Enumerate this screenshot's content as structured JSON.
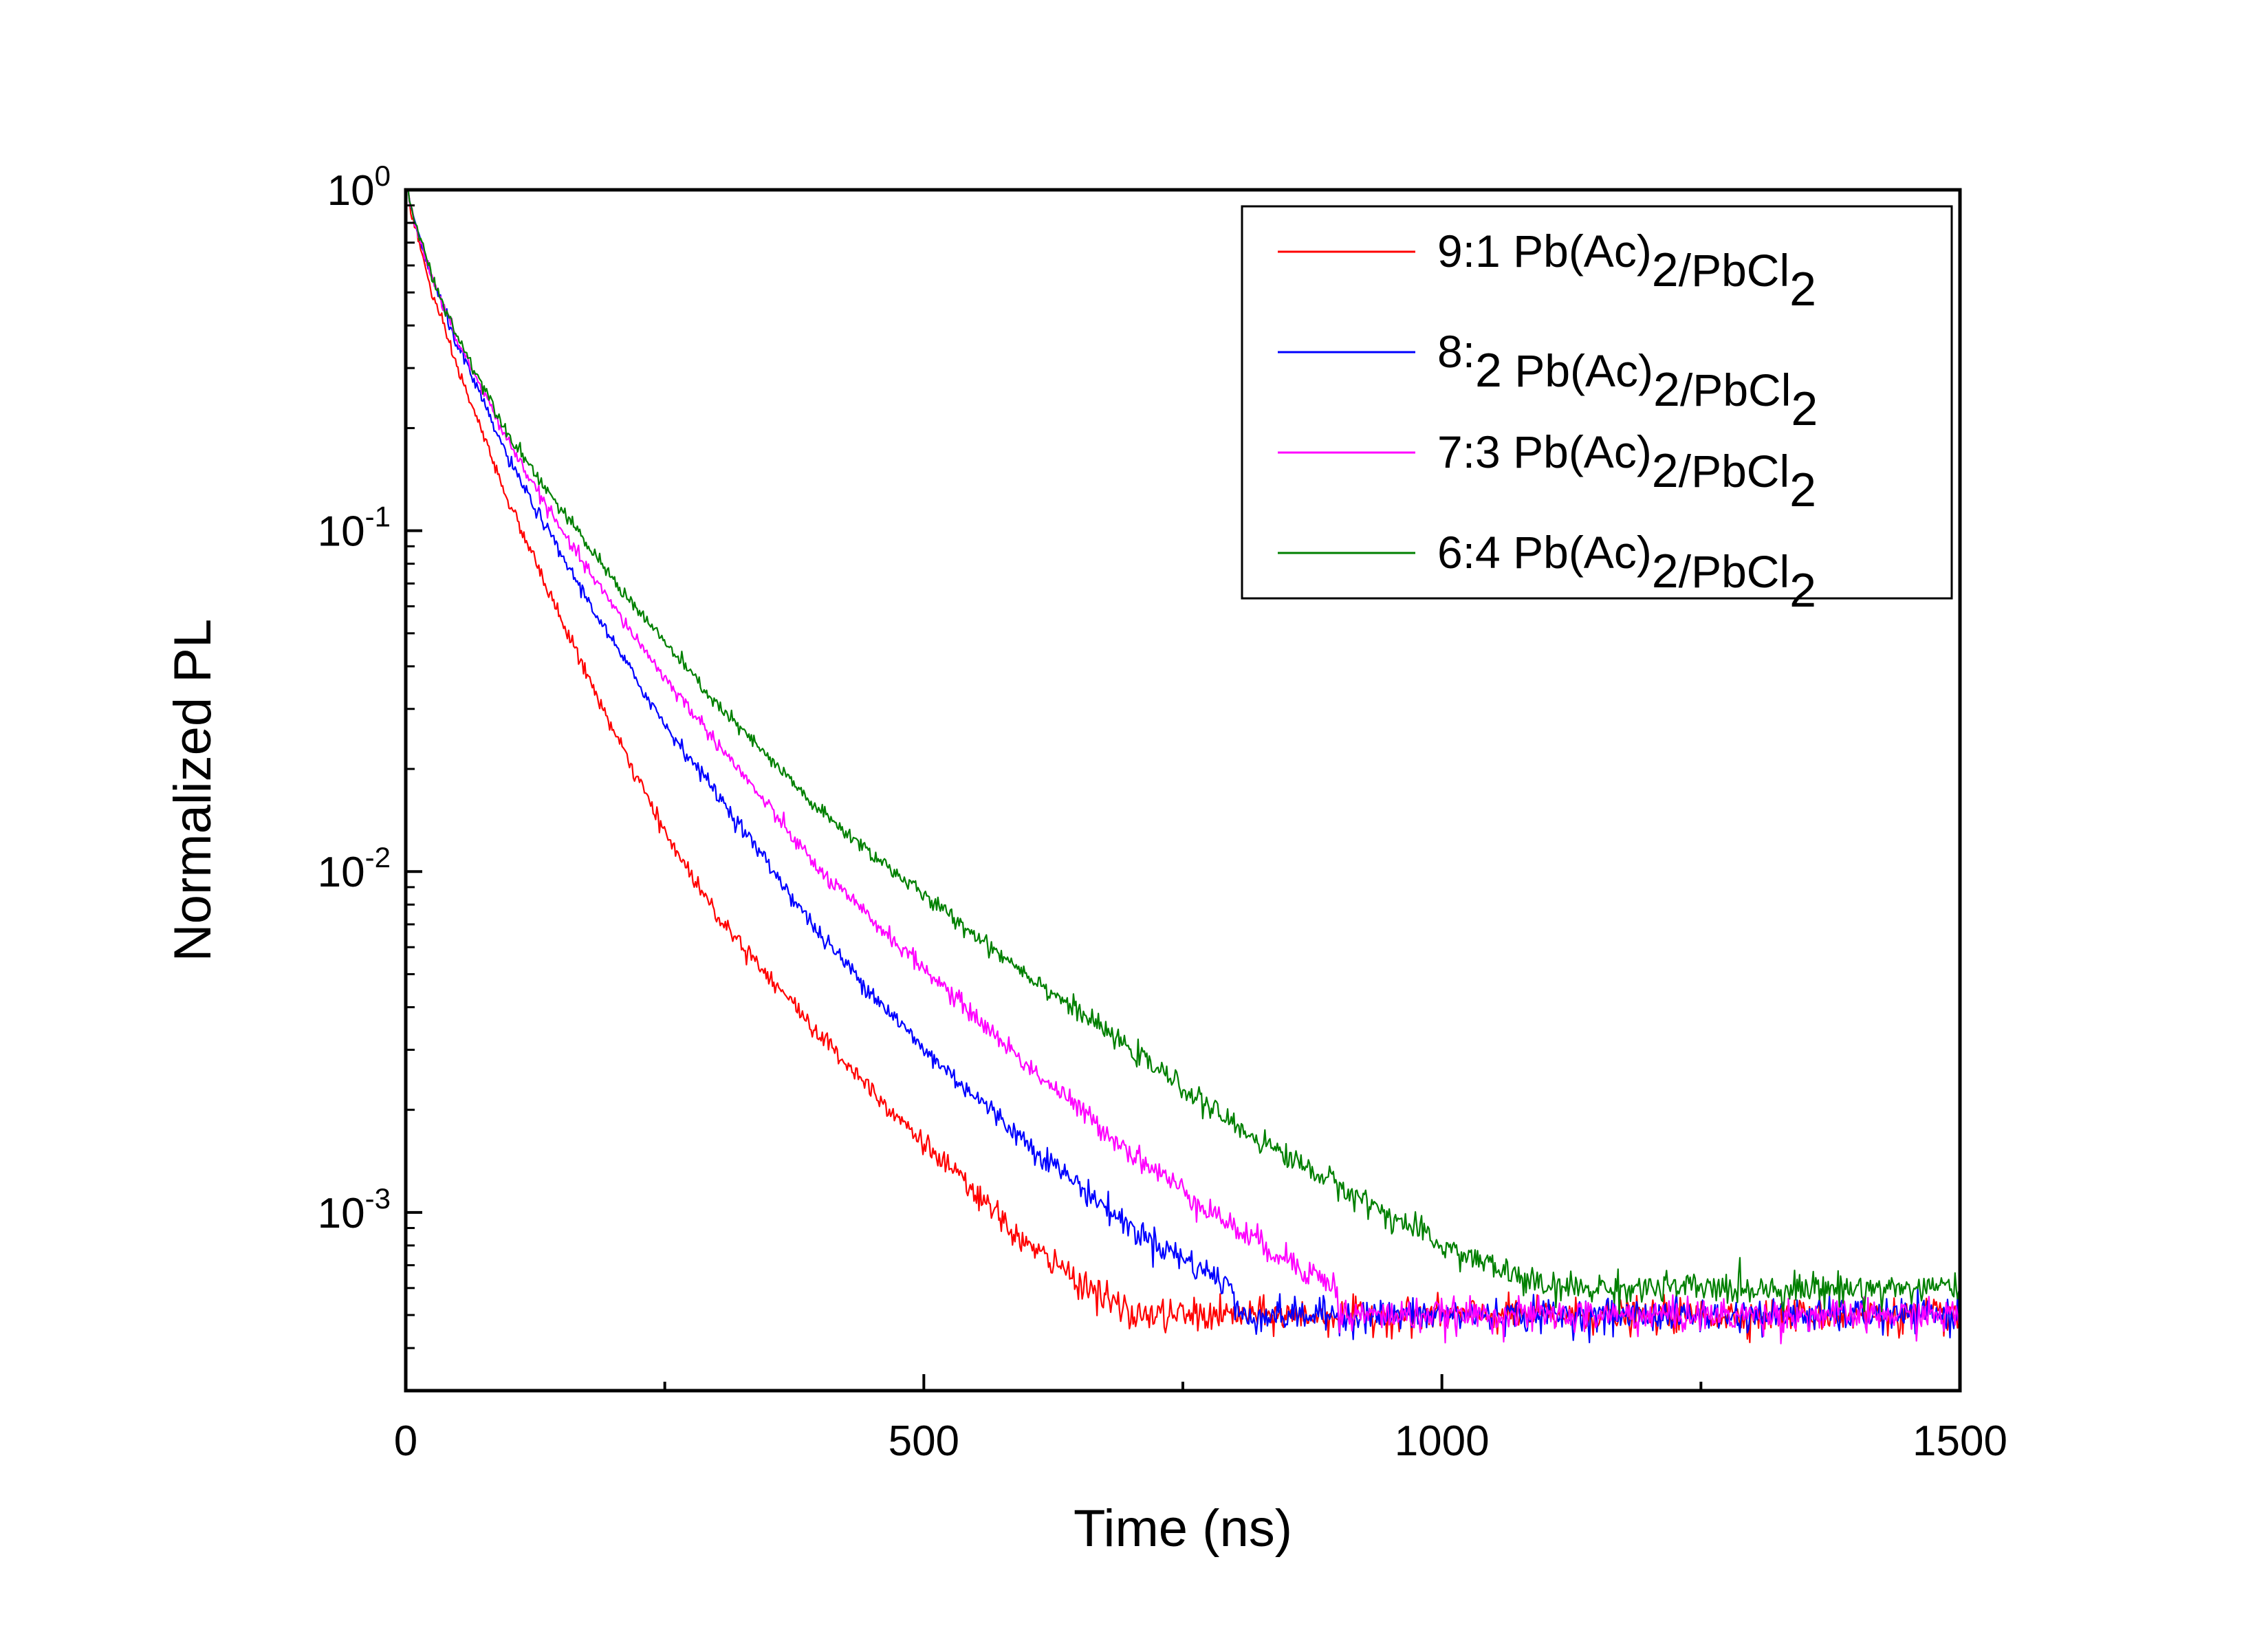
{
  "chart_data": {
    "type": "line",
    "title": "",
    "xlabel": "Time (ns)",
    "ylabel": "Normalized PL",
    "xlim": [
      0,
      1500
    ],
    "ylim": [
      0.0003,
      1.0
    ],
    "yscale": "log",
    "x_ticks": [
      0,
      500,
      1000,
      1500
    ],
    "y_ticks": [
      {
        "value": 0.001,
        "base": "10",
        "exp": "-3"
      },
      {
        "value": 0.01,
        "base": "10",
        "exp": "-2"
      },
      {
        "value": 0.1,
        "base": "10",
        "exp": "-1"
      },
      {
        "value": 1,
        "base": "10",
        "exp": "0"
      }
    ],
    "legend_position": "top-right",
    "series": [
      {
        "name": "9:1 Pb(Ac)2/PbCl2",
        "ratio": "9:1",
        "color": "#ff0000",
        "x": [
          0,
          25,
          50,
          100,
          150,
          200,
          250,
          300,
          400,
          500,
          600,
          700
        ],
        "y": [
          1.0,
          0.5,
          0.3,
          0.12,
          0.055,
          0.026,
          0.013,
          0.0075,
          0.0033,
          0.0016,
          0.0008,
          0.0005
        ],
        "noise_floor": 0.0005
      },
      {
        "name": "8:2 Pb(Ac)2/PbCl2",
        "ratio": "8:2",
        "color": "#0000ff",
        "x": [
          0,
          25,
          50,
          100,
          150,
          200,
          250,
          300,
          400,
          500,
          600,
          700,
          800
        ],
        "y": [
          1.0,
          0.55,
          0.35,
          0.16,
          0.085,
          0.047,
          0.027,
          0.017,
          0.0065,
          0.003,
          0.0016,
          0.0009,
          0.0006
        ],
        "noise_floor": 0.0005
      },
      {
        "name": "7:3 Pb(Ac)2/PbCl2",
        "ratio": "7:3",
        "color": "#ff00ff",
        "x": [
          0,
          25,
          50,
          100,
          150,
          200,
          250,
          300,
          400,
          500,
          600,
          700,
          800,
          900
        ],
        "y": [
          1.0,
          0.55,
          0.36,
          0.18,
          0.1,
          0.06,
          0.037,
          0.024,
          0.01,
          0.0052,
          0.0027,
          0.0015,
          0.0009,
          0.0006
        ],
        "noise_floor": 0.0005
      },
      {
        "name": "6:4 Pb(Ac)2/PbCl2",
        "ratio": "6:4",
        "color": "#008000",
        "x": [
          0,
          25,
          50,
          100,
          150,
          200,
          250,
          300,
          400,
          500,
          600,
          700,
          800,
          900,
          1000,
          1100
        ],
        "y": [
          1.0,
          0.56,
          0.37,
          0.19,
          0.115,
          0.072,
          0.047,
          0.031,
          0.015,
          0.0085,
          0.005,
          0.003,
          0.0018,
          0.0012,
          0.0008,
          0.0006
        ],
        "noise_floor": 0.0006
      }
    ]
  }
}
